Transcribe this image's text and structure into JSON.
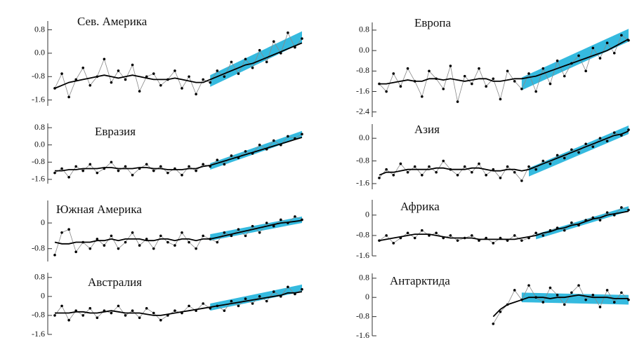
{
  "chart_data": [
    {
      "type": "line",
      "title": "Сев. Америка",
      "ylim": [
        -1.8,
        1.1
      ],
      "yticks": [
        0.8,
        {
          "value": 0,
          "label": "0.0"
        },
        -0.8,
        -1.6
      ],
      "series": [
        {
          "color": "#888888",
          "values": [
            -1.2,
            -0.7,
            -1.5,
            -0.9,
            -0.5,
            -1.1,
            -0.8,
            -0.2,
            -1.0,
            -0.6,
            -0.9,
            -0.4,
            -1.3,
            -0.8,
            -0.7,
            -1.1,
            -0.9,
            -0.6,
            -1.2,
            -0.8,
            -1.4,
            -0.9,
            -1.0,
            -0.6,
            -0.8,
            -0.3,
            -0.7,
            -0.2,
            -0.5,
            0.1,
            -0.3,
            0.4,
            0.0,
            0.7,
            0.2,
            0.5
          ]
        },
        {
          "color": "#000000",
          "values": [
            -1.2,
            -1.1,
            -1.0,
            -0.95,
            -0.9,
            -0.85,
            -0.8,
            -0.75,
            -0.8,
            -0.85,
            -0.8,
            -0.75,
            -0.8,
            -0.85,
            -0.9,
            -0.9,
            -0.9,
            -0.85,
            -0.9,
            -0.95,
            -1.0,
            -1.0,
            -0.9,
            -0.8,
            -0.7,
            -0.6,
            -0.5,
            -0.4,
            -0.35,
            -0.25,
            -0.15,
            -0.05,
            0.05,
            0.15,
            0.25,
            0.35
          ]
        },
        {
          "color": "#1fb3dc",
          "x": [
            22,
            35
          ],
          "values": [
            -0.95,
            0.55
          ],
          "error": 0.2
        }
      ]
    },
    {
      "type": "line",
      "title": "Европа",
      "ylim": [
        -2.6,
        1.1
      ],
      "yticks": [
        0.8,
        {
          "value": 0,
          "label": "0.0"
        },
        -0.8,
        -1.6,
        -2.4
      ],
      "series": [
        {
          "color": "#888888",
          "values": [
            -1.3,
            -1.6,
            -0.9,
            -1.4,
            -0.7,
            -1.2,
            -1.8,
            -0.8,
            -1.1,
            -1.5,
            -0.6,
            -2.0,
            -1.0,
            -1.3,
            -0.7,
            -1.4,
            -1.1,
            -1.9,
            -0.8,
            -1.2,
            -1.5,
            -0.9,
            -1.6,
            -0.7,
            -1.3,
            -0.4,
            -1.0,
            -0.5,
            -0.2,
            -0.8,
            0.1,
            -0.3,
            0.3,
            -0.1,
            0.6,
            0.4
          ]
        },
        {
          "color": "#000000",
          "values": [
            -1.3,
            -1.3,
            -1.25,
            -1.2,
            -1.15,
            -1.2,
            -1.2,
            -1.1,
            -1.1,
            -1.15,
            -1.1,
            -1.15,
            -1.2,
            -1.15,
            -1.1,
            -1.1,
            -1.2,
            -1.2,
            -1.15,
            -1.1,
            -1.1,
            -1.05,
            -1.0,
            -0.9,
            -0.8,
            -0.7,
            -0.6,
            -0.5,
            -0.4,
            -0.3,
            -0.2,
            -0.1,
            0.0,
            0.15,
            0.3,
            0.45
          ]
        },
        {
          "color": "#1fb3dc",
          "x": [
            20,
            35
          ],
          "values": [
            -1.3,
            0.6
          ],
          "error": 0.25
        }
      ]
    },
    {
      "type": "line",
      "title": "Евразия",
      "ylim": [
        -1.8,
        1.0
      ],
      "yticks": [
        0.8,
        {
          "value": 0,
          "label": "0.0"
        },
        -0.8,
        -1.6
      ],
      "series": [
        {
          "color": "#888888",
          "values": [
            -1.3,
            -1.1,
            -1.5,
            -1.0,
            -1.2,
            -0.9,
            -1.3,
            -1.1,
            -0.8,
            -1.2,
            -1.0,
            -1.4,
            -1.1,
            -0.9,
            -1.2,
            -1.0,
            -1.3,
            -1.1,
            -1.4,
            -1.0,
            -1.2,
            -0.9,
            -1.0,
            -0.7,
            -0.9,
            -0.5,
            -0.6,
            -0.3,
            -0.4,
            0.0,
            -0.2,
            0.2,
            0.0,
            0.4,
            0.3,
            0.5
          ]
        },
        {
          "color": "#000000",
          "values": [
            -1.2,
            -1.2,
            -1.15,
            -1.15,
            -1.1,
            -1.1,
            -1.1,
            -1.05,
            -1.05,
            -1.1,
            -1.1,
            -1.1,
            -1.05,
            -1.05,
            -1.1,
            -1.1,
            -1.15,
            -1.15,
            -1.15,
            -1.1,
            -1.1,
            -1.0,
            -0.95,
            -0.85,
            -0.75,
            -0.65,
            -0.55,
            -0.45,
            -0.35,
            -0.25,
            -0.15,
            -0.05,
            0.05,
            0.15,
            0.25,
            0.35
          ]
        },
        {
          "color": "#1fb3dc",
          "x": [
            22,
            35
          ],
          "values": [
            -1.0,
            0.5
          ],
          "error": 0.15
        }
      ]
    },
    {
      "type": "line",
      "title": "Азия",
      "ylim": [
        -1.8,
        0.5
      ],
      "yticks": [
        {
          "value": 0,
          "label": "0.0"
        },
        -0.8,
        -1.6
      ],
      "series": [
        {
          "color": "#888888",
          "values": [
            -1.4,
            -1.1,
            -1.3,
            -0.9,
            -1.2,
            -1.0,
            -1.3,
            -1.0,
            -1.2,
            -0.8,
            -1.1,
            -1.3,
            -1.0,
            -1.2,
            -0.9,
            -1.3,
            -1.1,
            -1.4,
            -1.0,
            -1.2,
            -1.5,
            -1.0,
            -1.1,
            -0.8,
            -0.9,
            -0.6,
            -0.7,
            -0.4,
            -0.5,
            -0.2,
            -0.3,
            0.0,
            -0.1,
            0.2,
            0.1,
            0.3
          ]
        },
        {
          "color": "#000000",
          "values": [
            -1.3,
            -1.2,
            -1.2,
            -1.15,
            -1.1,
            -1.1,
            -1.1,
            -1.1,
            -1.05,
            -1.05,
            -1.1,
            -1.1,
            -1.1,
            -1.05,
            -1.05,
            -1.1,
            -1.15,
            -1.15,
            -1.1,
            -1.1,
            -1.15,
            -1.1,
            -1.0,
            -0.9,
            -0.8,
            -0.7,
            -0.6,
            -0.5,
            -0.4,
            -0.3,
            -0.2,
            -0.1,
            0.0,
            0.1,
            0.15,
            0.25
          ]
        },
        {
          "color": "#1fb3dc",
          "x": [
            21,
            35
          ],
          "values": [
            -1.2,
            0.3
          ],
          "error": 0.15
        }
      ]
    },
    {
      "type": "line",
      "title": "Южная Америка",
      "ylim": [
        -1.2,
        0.7
      ],
      "yticks": [
        0,
        -0.8
      ],
      "series": [
        {
          "color": "#888888",
          "values": [
            -1.0,
            -0.3,
            -0.2,
            -0.9,
            -0.6,
            -0.8,
            -0.5,
            -0.7,
            -0.4,
            -0.8,
            -0.6,
            -0.3,
            -0.7,
            -0.5,
            -0.8,
            -0.4,
            -0.6,
            -0.7,
            -0.3,
            -0.6,
            -0.8,
            -0.4,
            -0.5,
            -0.6,
            -0.3,
            -0.4,
            -0.2,
            -0.4,
            -0.1,
            -0.3,
            0.0,
            -0.1,
            0.1,
            0.0,
            0.2,
            0.1
          ]
        },
        {
          "color": "#000000",
          "values": [
            -0.6,
            -0.65,
            -0.65,
            -0.6,
            -0.6,
            -0.6,
            -0.55,
            -0.55,
            -0.5,
            -0.55,
            -0.5,
            -0.5,
            -0.5,
            -0.55,
            -0.55,
            -0.5,
            -0.5,
            -0.55,
            -0.5,
            -0.5,
            -0.55,
            -0.5,
            -0.5,
            -0.45,
            -0.4,
            -0.35,
            -0.3,
            -0.25,
            -0.2,
            -0.15,
            -0.1,
            -0.05,
            0.0,
            0.02,
            0.05,
            0.08
          ]
        },
        {
          "color": "#1fb3dc",
          "x": [
            22,
            35
          ],
          "values": [
            -0.45,
            0.1
          ],
          "error": 0.1
        }
      ]
    },
    {
      "type": "line",
      "title": "Африка",
      "ylim": [
        -1.6,
        0.6
      ],
      "yticks": [
        0,
        -0.8,
        -1.6
      ],
      "series": [
        {
          "color": "#888888",
          "values": [
            -1.0,
            -0.8,
            -1.1,
            -0.9,
            -0.7,
            -0.9,
            -0.6,
            -0.8,
            -0.7,
            -0.9,
            -0.8,
            -1.0,
            -0.9,
            -0.8,
            -1.0,
            -0.9,
            -1.1,
            -0.9,
            -1.0,
            -0.8,
            -1.0,
            -0.9,
            -0.7,
            -0.8,
            -0.6,
            -0.5,
            -0.6,
            -0.3,
            -0.4,
            -0.2,
            -0.1,
            -0.2,
            0.1,
            0.0,
            0.3,
            0.2
          ]
        },
        {
          "color": "#000000",
          "values": [
            -1.0,
            -0.95,
            -0.9,
            -0.85,
            -0.8,
            -0.75,
            -0.75,
            -0.75,
            -0.8,
            -0.85,
            -0.9,
            -0.9,
            -0.9,
            -0.9,
            -0.95,
            -0.95,
            -0.95,
            -0.95,
            -0.95,
            -0.95,
            -0.9,
            -0.85,
            -0.8,
            -0.7,
            -0.65,
            -0.55,
            -0.5,
            -0.4,
            -0.35,
            -0.25,
            -0.15,
            -0.1,
            0.0,
            0.05,
            0.1,
            0.15
          ]
        },
        {
          "color": "#1fb3dc",
          "x": [
            22,
            35
          ],
          "values": [
            -0.85,
            0.25
          ],
          "error": 0.1
        }
      ]
    },
    {
      "type": "line",
      "title": "Австралия",
      "ylim": [
        -1.6,
        1.0
      ],
      "yticks": [
        0.8,
        0,
        -0.8,
        -1.6
      ],
      "series": [
        {
          "color": "#888888",
          "values": [
            -0.8,
            -0.4,
            -1.0,
            -0.6,
            -0.8,
            -0.5,
            -0.9,
            -0.6,
            -0.7,
            -0.4,
            -0.8,
            -0.6,
            -0.9,
            -0.5,
            -0.7,
            -1.0,
            -0.8,
            -0.6,
            -0.7,
            -0.4,
            -0.6,
            -0.3,
            -0.5,
            -0.4,
            -0.6,
            -0.2,
            -0.4,
            -0.1,
            -0.3,
            0.0,
            -0.2,
            0.2,
            0.0,
            0.4,
            0.1,
            0.3
          ]
        },
        {
          "color": "#000000",
          "values": [
            -0.7,
            -0.7,
            -0.7,
            -0.65,
            -0.65,
            -0.7,
            -0.7,
            -0.65,
            -0.6,
            -0.65,
            -0.7,
            -0.7,
            -0.7,
            -0.75,
            -0.8,
            -0.8,
            -0.75,
            -0.7,
            -0.65,
            -0.6,
            -0.55,
            -0.5,
            -0.45,
            -0.4,
            -0.35,
            -0.3,
            -0.25,
            -0.2,
            -0.15,
            -0.1,
            -0.05,
            0.0,
            0.05,
            0.15,
            0.15,
            0.2
          ]
        },
        {
          "color": "#1fb3dc",
          "x": [
            22,
            35
          ],
          "values": [
            -0.45,
            0.35
          ],
          "error": 0.15
        }
      ]
    },
    {
      "type": "line",
      "title": "Антарктида",
      "ylim": [
        -1.6,
        1.0
      ],
      "yticks": [
        0.8,
        0,
        -0.8,
        -1.6
      ],
      "series": [
        {
          "color": "#888888",
          "values": [
            null,
            null,
            null,
            null,
            null,
            null,
            null,
            null,
            null,
            null,
            null,
            null,
            null,
            null,
            null,
            null,
            -1.1,
            -0.6,
            -0.3,
            0.3,
            -0.1,
            0.5,
            0.0,
            -0.2,
            0.4,
            0.1,
            -0.3,
            0.2,
            0.5,
            -0.1,
            0.1,
            -0.4,
            0.3,
            -0.2,
            0.2,
            -0.1
          ]
        },
        {
          "color": "#000000",
          "values": [
            null,
            null,
            null,
            null,
            null,
            null,
            null,
            null,
            null,
            null,
            null,
            null,
            null,
            null,
            null,
            null,
            -0.8,
            -0.5,
            -0.3,
            -0.2,
            -0.1,
            0.0,
            0.0,
            0.0,
            -0.05,
            0.0,
            0.0,
            0.05,
            0.1,
            0.05,
            0.0,
            0.0,
            0.0,
            -0.05,
            -0.05,
            -0.05
          ]
        },
        {
          "color": "#1fb3dc",
          "x": [
            20,
            35
          ],
          "values": [
            0.0,
            -0.1
          ],
          "error": 0.2
        }
      ]
    }
  ]
}
